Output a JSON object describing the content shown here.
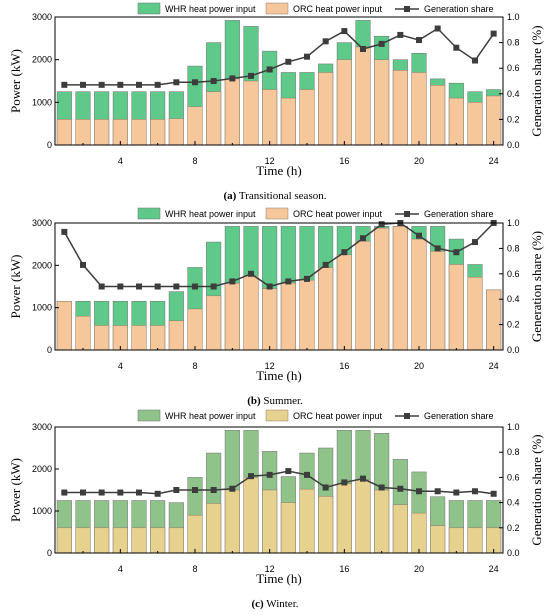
{
  "chart_data": [
    {
      "type": "bar",
      "caption_letter": "(a)",
      "caption_text": " Transitional season.",
      "xlabel": "Time (h)",
      "ylabel": "Power (kW)",
      "y2label": "Generation share (%)",
      "xlim": [
        0.5,
        24.5
      ],
      "ylim": [
        0,
        3000
      ],
      "y2lim": [
        0,
        1.0
      ],
      "xticks": [
        4,
        8,
        12,
        16,
        20,
        24
      ],
      "yticks": [
        0,
        1000,
        2000,
        3000
      ],
      "y2ticks": [
        "0.0",
        "0.2",
        "0.4",
        "0.6",
        "0.8",
        "1.0"
      ],
      "x": [
        1,
        2,
        3,
        4,
        5,
        6,
        7,
        8,
        9,
        10,
        11,
        12,
        13,
        14,
        15,
        16,
        17,
        18,
        19,
        20,
        21,
        22,
        23,
        24
      ],
      "legend": {
        "placement": "top"
      },
      "colors": {
        "whr": "#5fc98a",
        "orc": "#f5c79a",
        "share": "#3d3d3d"
      },
      "series": [
        {
          "name": "WHR heat power input",
          "kind": "bar",
          "values": [
            1250,
            1250,
            1250,
            1250,
            1250,
            1250,
            1250,
            1850,
            2400,
            2920,
            2780,
            2200,
            1700,
            1700,
            1900,
            2400,
            2920,
            2550,
            2000,
            2150,
            1550,
            1450,
            1250,
            1300
          ]
        },
        {
          "name": "ORC heat power input",
          "kind": "bar",
          "values": [
            600,
            600,
            600,
            600,
            600,
            600,
            620,
            900,
            1250,
            1550,
            1500,
            1300,
            1100,
            1300,
            1700,
            2000,
            2300,
            2000,
            1750,
            1700,
            1400,
            1100,
            1000,
            1150
          ]
        },
        {
          "name": "Generation share",
          "kind": "line",
          "axis": "right",
          "values": [
            0.47,
            0.47,
            0.47,
            0.47,
            0.47,
            0.47,
            0.49,
            0.49,
            0.5,
            0.52,
            0.54,
            0.59,
            0.65,
            0.69,
            0.81,
            0.89,
            0.75,
            0.79,
            0.86,
            0.82,
            0.91,
            0.76,
            0.66,
            0.87
          ]
        }
      ]
    },
    {
      "type": "bar",
      "caption_letter": "(b)",
      "caption_text": " Summer.",
      "xlabel": "Time (h)",
      "ylabel": "Power (kW)",
      "y2label": "Generation share (%)",
      "xlim": [
        0.5,
        24.5
      ],
      "ylim": [
        0,
        3000
      ],
      "y2lim": [
        0,
        1.0
      ],
      "xticks": [
        4,
        8,
        12,
        16,
        20,
        24
      ],
      "yticks": [
        0,
        1000,
        2000,
        3000
      ],
      "y2ticks": [
        "0.0",
        "0.2",
        "0.4",
        "0.6",
        "0.8",
        "1.0"
      ],
      "x": [
        1,
        2,
        3,
        4,
        5,
        6,
        7,
        8,
        9,
        10,
        11,
        12,
        13,
        14,
        15,
        16,
        17,
        18,
        19,
        20,
        21,
        22,
        23,
        24
      ],
      "legend": {
        "placement": "top"
      },
      "colors": {
        "whr": "#5fc98a",
        "orc": "#f5c79a",
        "share": "#3d3d3d"
      },
      "series": [
        {
          "name": "WHR heat power input",
          "kind": "bar",
          "values": [
            1150,
            1150,
            1150,
            1150,
            1150,
            1150,
            1380,
            1950,
            2550,
            2920,
            2920,
            2920,
            2920,
            2920,
            2920,
            2920,
            2920,
            2920,
            2920,
            2920,
            2920,
            2620,
            2020,
            1420
          ]
        },
        {
          "name": "ORC heat power input",
          "kind": "bar",
          "values": [
            1150,
            800,
            580,
            580,
            580,
            580,
            690,
            970,
            1280,
            1580,
            1750,
            1450,
            1580,
            1650,
            1950,
            2250,
            2570,
            2880,
            2920,
            2620,
            2330,
            2020,
            1720,
            1420
          ]
        },
        {
          "name": "Generation share",
          "kind": "line",
          "axis": "right",
          "values": [
            0.93,
            0.67,
            0.5,
            0.5,
            0.5,
            0.5,
            0.5,
            0.5,
            0.5,
            0.54,
            0.6,
            0.5,
            0.54,
            0.56,
            0.67,
            0.77,
            0.88,
            0.99,
            1.0,
            0.9,
            0.8,
            0.77,
            0.85,
            1.0
          ]
        }
      ]
    },
    {
      "type": "bar",
      "caption_letter": "(c)",
      "caption_text": " Winter.",
      "xlabel": "Time (h)",
      "ylabel": "Power (kW)",
      "y2label": "Generation share (%)",
      "xlim": [
        0.5,
        24.5
      ],
      "ylim": [
        0,
        3000
      ],
      "y2lim": [
        0,
        1.0
      ],
      "xticks": [
        4,
        8,
        12,
        16,
        20,
        24
      ],
      "yticks": [
        0,
        1000,
        2000,
        3000
      ],
      "y2ticks": [
        "0.0",
        "0.2",
        "0.4",
        "0.6",
        "0.8",
        "1.0"
      ],
      "x": [
        1,
        2,
        3,
        4,
        5,
        6,
        7,
        8,
        9,
        10,
        11,
        12,
        13,
        14,
        15,
        16,
        17,
        18,
        19,
        20,
        21,
        22,
        23,
        24
      ],
      "legend": {
        "placement": "top"
      },
      "colors": {
        "whr": "#8fc38a",
        "orc": "#e6d28e",
        "share": "#3d3d3d"
      },
      "series": [
        {
          "name": "WHR heat power input",
          "kind": "bar",
          "values": [
            1250,
            1250,
            1250,
            1250,
            1250,
            1250,
            1200,
            1800,
            2380,
            2920,
            2920,
            2420,
            1820,
            2380,
            2500,
            2920,
            2920,
            2850,
            2230,
            1930,
            1340,
            1250,
            1250,
            1250
          ]
        },
        {
          "name": "ORC heat power input",
          "kind": "bar",
          "values": [
            600,
            600,
            600,
            600,
            600,
            600,
            600,
            900,
            1180,
            1500,
            1800,
            1500,
            1200,
            1520,
            1350,
            1650,
            1740,
            1500,
            1150,
            950,
            650,
            600,
            600,
            600
          ]
        },
        {
          "name": "Generation share",
          "kind": "line",
          "axis": "right",
          "values": [
            0.48,
            0.48,
            0.48,
            0.48,
            0.48,
            0.47,
            0.5,
            0.5,
            0.5,
            0.51,
            0.61,
            0.62,
            0.65,
            0.62,
            0.52,
            0.56,
            0.59,
            0.52,
            0.51,
            0.49,
            0.49,
            0.48,
            0.49,
            0.47
          ]
        }
      ]
    }
  ]
}
